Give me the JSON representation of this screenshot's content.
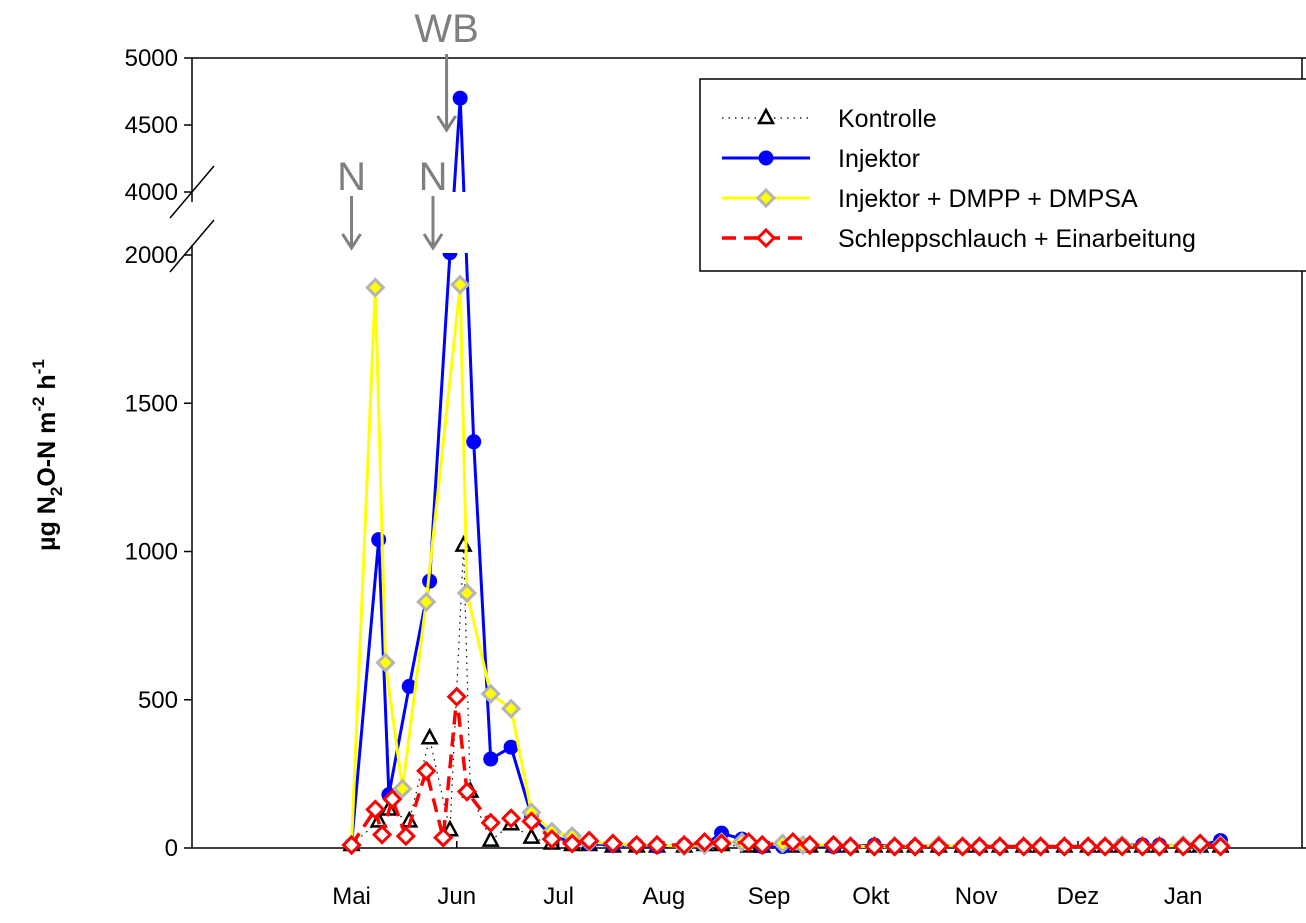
{
  "chart_data": {
    "type": "line",
    "title": "",
    "xlabel": "",
    "ylabel_parts": [
      "µg N",
      "2",
      "O-N m",
      "-2",
      " h",
      "-1"
    ],
    "x_unit": "day since 1 May",
    "xlim": [
      -47,
      280
    ],
    "y_axis": {
      "broken": true,
      "lower_range": [
        0,
        2000
      ],
      "upper_range": [
        4000,
        5000
      ],
      "ticks": [
        {
          "label": "0",
          "value": 0
        },
        {
          "label": "500",
          "value": 500
        },
        {
          "label": "1000",
          "value": 1000
        },
        {
          "label": "1500",
          "value": 1500
        },
        {
          "label": "2000",
          "value": 2000
        },
        {
          "label": "4000",
          "value": 4000
        },
        {
          "label": "4500",
          "value": 4500
        },
        {
          "label": "5000",
          "value": 5000
        }
      ]
    },
    "month_ticks": [
      {
        "label": "Mai",
        "day": 0
      },
      {
        "label": "Jun",
        "day": 31
      },
      {
        "label": "Jul",
        "day": 61
      },
      {
        "label": "Aug",
        "day": 92
      },
      {
        "label": "Sep",
        "day": 123
      },
      {
        "label": "Okt",
        "day": 153
      },
      {
        "label": "Nov",
        "day": 184
      },
      {
        "label": "Dez",
        "day": 214
      },
      {
        "label": "Jan",
        "day": 245
      }
    ],
    "annotations": [
      {
        "text": "N",
        "day": 0,
        "arrow_to": 2000
      },
      {
        "text": "N",
        "day": 24,
        "arrow_to": 2000
      },
      {
        "text": "WB",
        "day": 28,
        "arrow_to": 4450
      }
    ],
    "series": [
      {
        "name": "Kontrolle",
        "color": "#000000",
        "style": "dotted",
        "marker": "triangle-open",
        "points": [
          [
            0,
            10
          ],
          [
            8,
            90
          ],
          [
            11,
            130
          ],
          [
            17,
            90
          ],
          [
            23,
            370
          ],
          [
            29,
            60
          ],
          [
            33,
            1020
          ],
          [
            35,
            190
          ],
          [
            41,
            25
          ],
          [
            47,
            80
          ],
          [
            53,
            35
          ],
          [
            59,
            15
          ],
          [
            65,
            10
          ],
          [
            70,
            10
          ],
          [
            77,
            5
          ],
          [
            84,
            5
          ],
          [
            90,
            5
          ],
          [
            98,
            5
          ],
          [
            104,
            10
          ],
          [
            109,
            10
          ],
          [
            117,
            5
          ],
          [
            121,
            5
          ],
          [
            130,
            5
          ],
          [
            135,
            5
          ],
          [
            142,
            5
          ],
          [
            147,
            5
          ],
          [
            154,
            5
          ],
          [
            160,
            5
          ],
          [
            166,
            5
          ],
          [
            173,
            5
          ],
          [
            180,
            5
          ],
          [
            185,
            5
          ],
          [
            191,
            5
          ],
          [
            198,
            5
          ],
          [
            203,
            5
          ],
          [
            210,
            5
          ],
          [
            217,
            5
          ],
          [
            222,
            5
          ],
          [
            227,
            5
          ],
          [
            233,
            5
          ],
          [
            238,
            5
          ],
          [
            245,
            5
          ],
          [
            250,
            5
          ],
          [
            256,
            5
          ]
        ]
      },
      {
        "name": "Injektor",
        "color": "#0000ff",
        "style": "solid",
        "marker": "circle-filled",
        "points": [
          [
            0,
            10
          ],
          [
            8,
            1040
          ],
          [
            11,
            180
          ],
          [
            17,
            545
          ],
          [
            23,
            900
          ],
          [
            29,
            2100
          ],
          [
            32,
            4700
          ],
          [
            36,
            1370
          ],
          [
            41,
            300
          ],
          [
            47,
            340
          ],
          [
            53,
            110
          ],
          [
            59,
            40
          ],
          [
            65,
            20
          ],
          [
            70,
            15
          ],
          [
            77,
            10
          ],
          [
            84,
            10
          ],
          [
            90,
            5
          ],
          [
            98,
            10
          ],
          [
            104,
            10
          ],
          [
            109,
            50
          ],
          [
            115,
            30
          ],
          [
            121,
            5
          ],
          [
            127,
            5
          ],
          [
            133,
            10
          ],
          [
            142,
            5
          ],
          [
            147,
            5
          ],
          [
            154,
            10
          ],
          [
            160,
            5
          ],
          [
            166,
            5
          ],
          [
            173,
            5
          ],
          [
            180,
            5
          ],
          [
            185,
            5
          ],
          [
            191,
            5
          ],
          [
            198,
            5
          ],
          [
            203,
            5
          ],
          [
            210,
            5
          ],
          [
            217,
            5
          ],
          [
            222,
            5
          ],
          [
            227,
            10
          ],
          [
            233,
            10
          ],
          [
            238,
            10
          ],
          [
            245,
            5
          ],
          [
            250,
            10
          ],
          [
            256,
            25
          ]
        ]
      },
      {
        "name": "Injektor + DMPP + DMPSA",
        "color": "#ffff00",
        "marker_edge": "#b4b4b4",
        "style": "solid",
        "marker": "diamond-filled",
        "points": [
          [
            0,
            10
          ],
          [
            7,
            1890
          ],
          [
            10,
            625
          ],
          [
            15,
            200
          ],
          [
            22,
            830
          ],
          [
            32,
            1900
          ],
          [
            34,
            860
          ],
          [
            41,
            520
          ],
          [
            47,
            470
          ],
          [
            53,
            120
          ],
          [
            59,
            55
          ],
          [
            65,
            40
          ],
          [
            70,
            20
          ],
          [
            77,
            15
          ],
          [
            84,
            10
          ],
          [
            90,
            10
          ],
          [
            98,
            5
          ],
          [
            104,
            10
          ],
          [
            109,
            20
          ],
          [
            115,
            20
          ],
          [
            121,
            10
          ],
          [
            127,
            15
          ],
          [
            133,
            10
          ],
          [
            142,
            10
          ],
          [
            147,
            5
          ],
          [
            154,
            5
          ],
          [
            160,
            5
          ],
          [
            166,
            5
          ],
          [
            173,
            10
          ],
          [
            180,
            5
          ],
          [
            185,
            5
          ],
          [
            191,
            5
          ],
          [
            198,
            5
          ],
          [
            203,
            5
          ],
          [
            210,
            5
          ],
          [
            217,
            5
          ],
          [
            222,
            5
          ],
          [
            227,
            10
          ],
          [
            233,
            5
          ],
          [
            238,
            5
          ],
          [
            245,
            10
          ],
          [
            250,
            10
          ],
          [
            256,
            10
          ]
        ]
      },
      {
        "name": "Schleppschlauch + Einarbeitung",
        "color": "#ff0000",
        "style": "dashed",
        "marker": "diamond-open",
        "points": [
          [
            0,
            10
          ],
          [
            7,
            130
          ],
          [
            9,
            45
          ],
          [
            12,
            165
          ],
          [
            16,
            40
          ],
          [
            22,
            260
          ],
          [
            27,
            35
          ],
          [
            31,
            510
          ],
          [
            34,
            190
          ],
          [
            41,
            85
          ],
          [
            47,
            100
          ],
          [
            53,
            90
          ],
          [
            59,
            30
          ],
          [
            65,
            15
          ],
          [
            70,
            25
          ],
          [
            77,
            15
          ],
          [
            84,
            10
          ],
          [
            90,
            10
          ],
          [
            98,
            10
          ],
          [
            104,
            20
          ],
          [
            109,
            15
          ],
          [
            117,
            20
          ],
          [
            121,
            10
          ],
          [
            130,
            20
          ],
          [
            135,
            10
          ],
          [
            142,
            10
          ],
          [
            147,
            5
          ],
          [
            154,
            5
          ],
          [
            160,
            5
          ],
          [
            166,
            5
          ],
          [
            173,
            5
          ],
          [
            180,
            5
          ],
          [
            185,
            5
          ],
          [
            191,
            5
          ],
          [
            198,
            5
          ],
          [
            203,
            5
          ],
          [
            210,
            5
          ],
          [
            217,
            5
          ],
          [
            222,
            5
          ],
          [
            227,
            5
          ],
          [
            233,
            5
          ],
          [
            238,
            5
          ],
          [
            245,
            5
          ],
          [
            250,
            15
          ],
          [
            256,
            5
          ]
        ]
      }
    ],
    "legend": {
      "placement": "top-right"
    }
  }
}
